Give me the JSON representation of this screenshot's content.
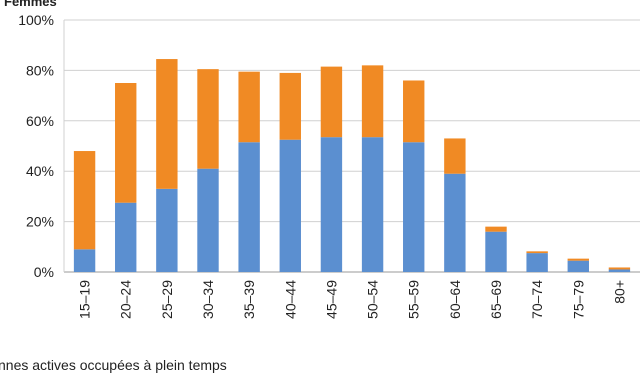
{
  "chart_data": {
    "type": "bar",
    "stacked": true,
    "title": "Femmes",
    "categories": [
      "15–19",
      "20–24",
      "25–29",
      "30–34",
      "35–39",
      "40–44",
      "45–49",
      "50–54",
      "55–59",
      "60–64",
      "65–69",
      "70–74",
      "75–79",
      "80+"
    ],
    "series": [
      {
        "name": "nnes actives occupées à plein temps",
        "color": "#5b8fd0",
        "values": [
          9,
          27.5,
          33,
          41,
          51.5,
          52.5,
          53.5,
          53.5,
          51.5,
          39,
          16,
          7.5,
          4.5,
          1
        ]
      },
      {
        "name": "",
        "color": "#f08a24",
        "values": [
          39,
          47.5,
          51.5,
          39.5,
          28,
          26.5,
          28,
          28.5,
          24.5,
          14,
          2,
          0.7,
          0.8,
          0.8
        ]
      }
    ],
    "ylim": [
      0,
      100
    ],
    "yticks": [
      "0%",
      "20%",
      "40%",
      "60%",
      "80%",
      "100%"
    ],
    "ytick_values": [
      0,
      20,
      40,
      60,
      80,
      100
    ],
    "grid": true,
    "legend_position": "bottom"
  }
}
